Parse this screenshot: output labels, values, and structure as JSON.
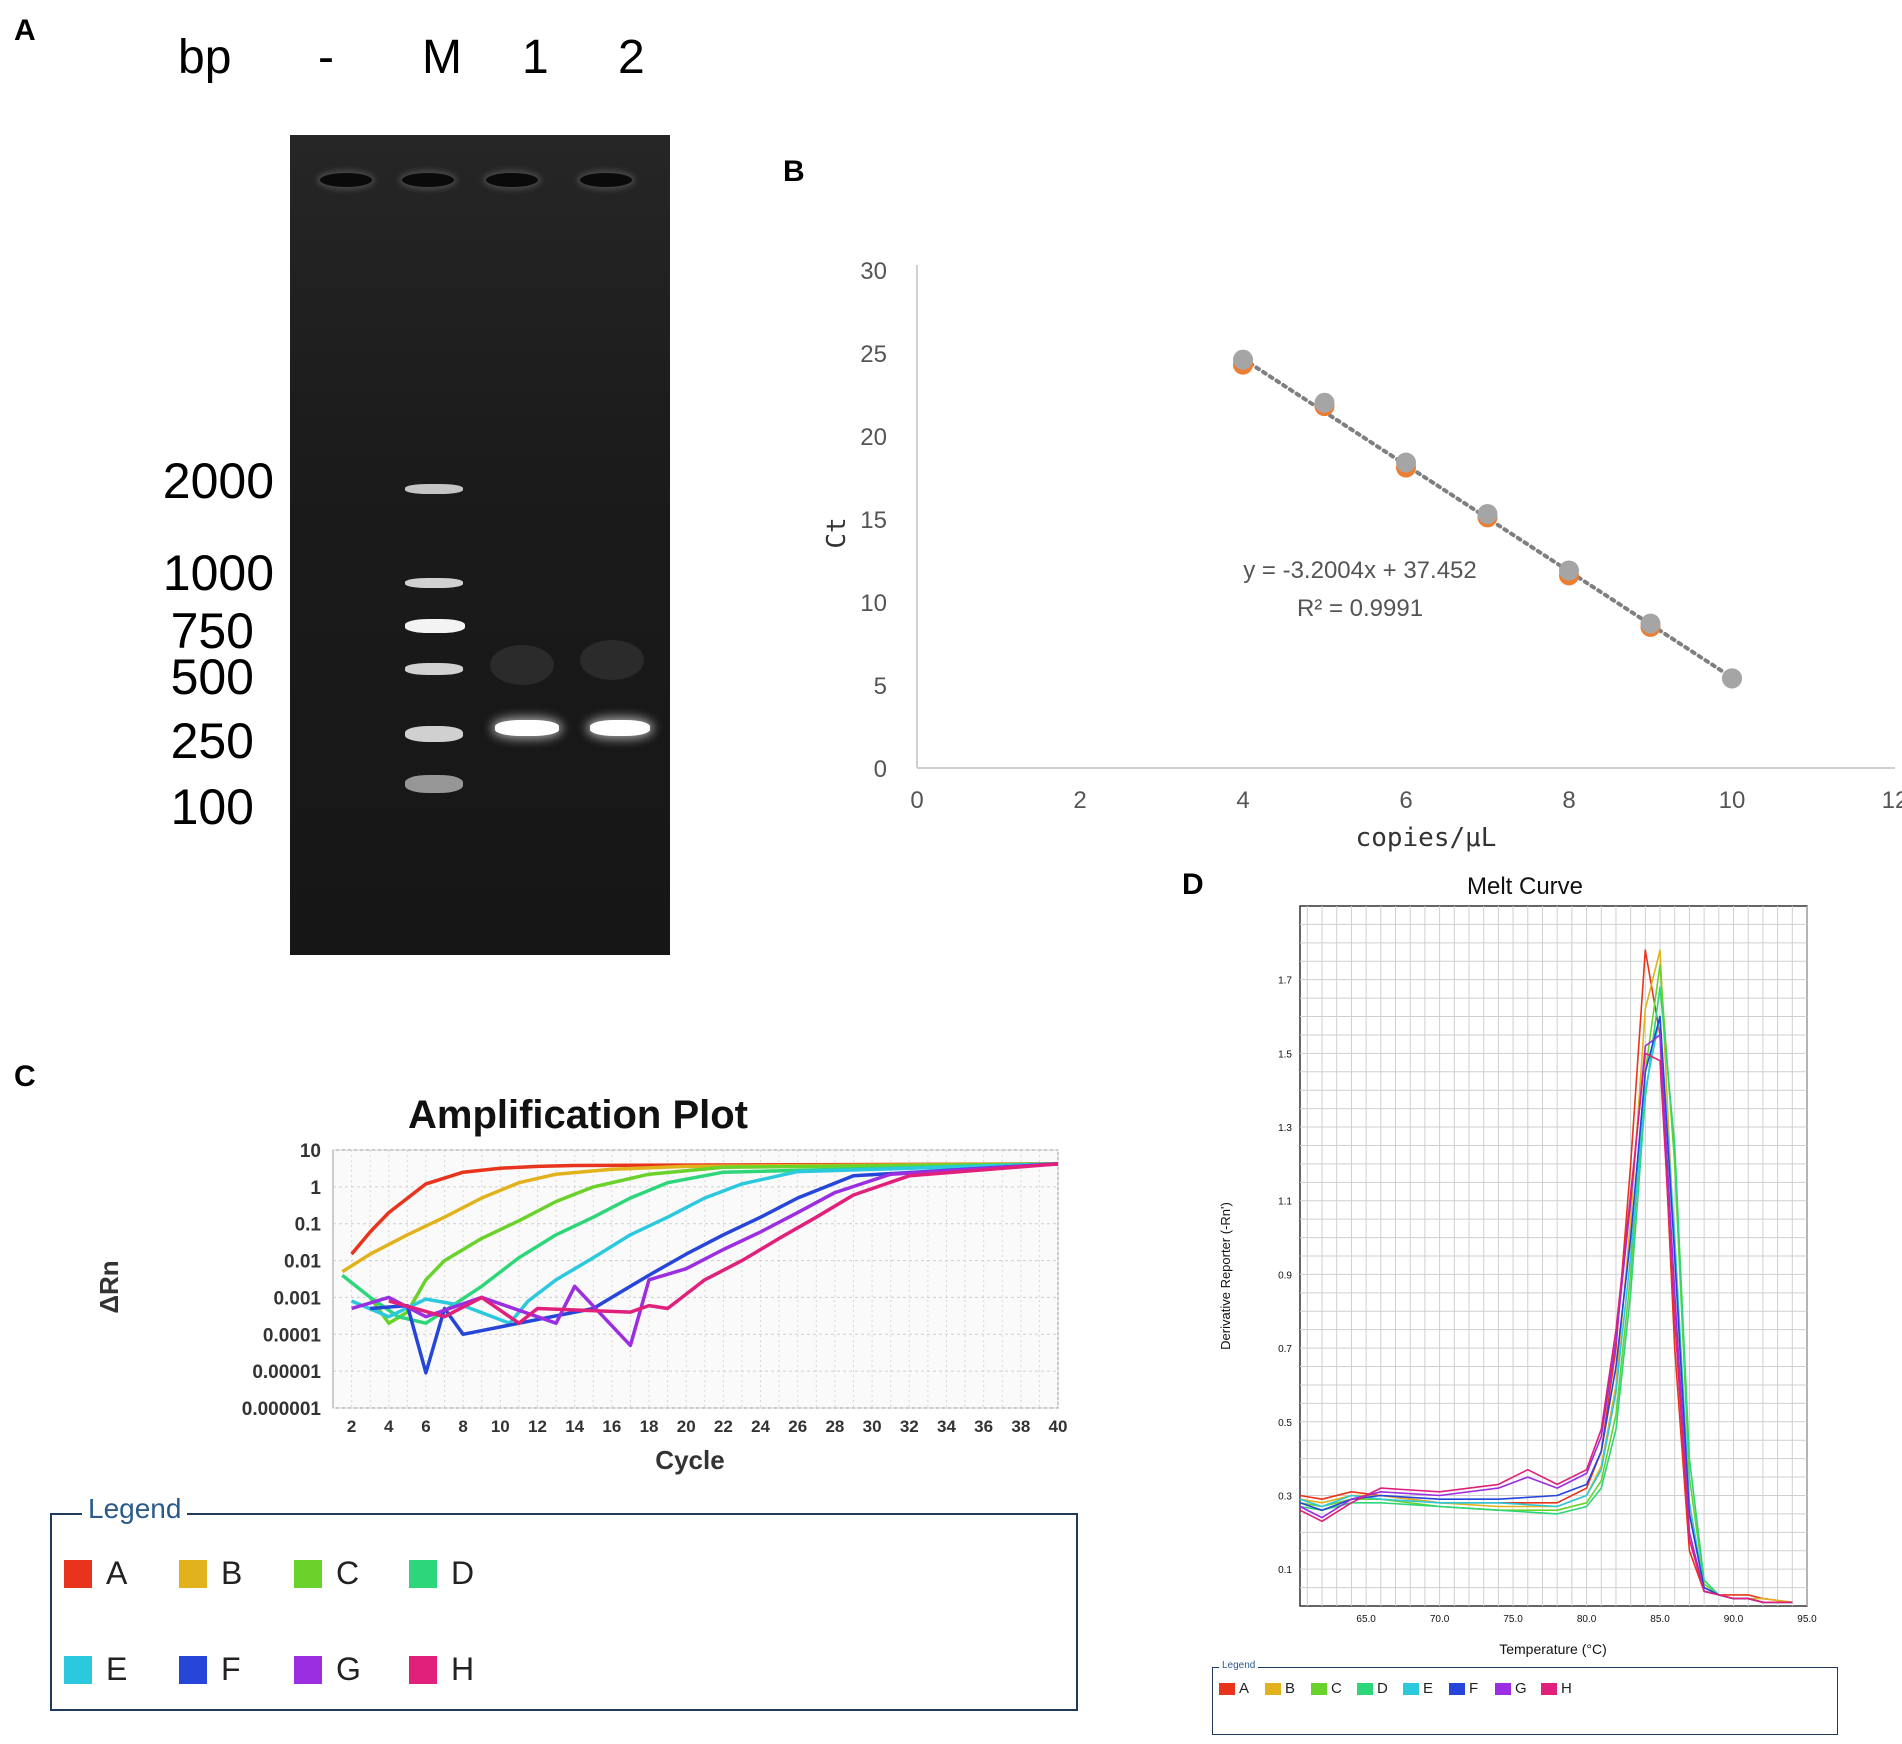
{
  "panels": {
    "a": "A",
    "b": "B",
    "c": "C",
    "d": "D"
  },
  "gel": {
    "columns": [
      "bp",
      "-",
      "M",
      "1",
      "2"
    ],
    "size_labels": [
      "2000",
      "1000",
      "750",
      "500",
      "250",
      "100"
    ]
  },
  "chart_data": [
    {
      "type": "scatter",
      "panel": "B",
      "title": "",
      "xlabel": "copies/μL",
      "ylabel": "Ct",
      "xlim": [
        0,
        12
      ],
      "ylim": [
        0,
        30
      ],
      "xticks": [
        0,
        2,
        4,
        6,
        8,
        10,
        12
      ],
      "yticks": [
        0,
        5,
        10,
        15,
        20,
        25,
        30
      ],
      "grid": false,
      "series": [
        {
          "x": [
            4,
            5,
            6,
            7,
            8,
            9,
            10
          ],
          "y": [
            24.3,
            21.8,
            18.1,
            15.1,
            11.6,
            8.5,
            5.4
          ],
          "color": "#ed7d31"
        },
        {
          "x": [
            4,
            5,
            6,
            7,
            8,
            9,
            10
          ],
          "y": [
            24.6,
            22.0,
            18.4,
            15.3,
            11.9,
            8.7,
            5.4
          ],
          "color": "#a5a5a5"
        }
      ],
      "trendline": {
        "slope": -3.2004,
        "intercept": 37.452,
        "style": "dotted",
        "color": "#7f7f7f"
      },
      "annotations": [
        "y = -3.2004x + 37.452",
        "R² = 0.9991"
      ]
    },
    {
      "type": "line",
      "panel": "C",
      "title": "Amplification Plot",
      "xlabel": "Cycle",
      "ylabel": "ΔRn",
      "yscale": "log",
      "xlim": [
        1,
        40
      ],
      "ylim": [
        1e-06,
        10
      ],
      "xticks": [
        2,
        4,
        6,
        8,
        10,
        12,
        14,
        16,
        18,
        20,
        22,
        24,
        26,
        28,
        30,
        32,
        34,
        36,
        38,
        40
      ],
      "yticks": [
        "10",
        "1",
        "0.1",
        "0.01",
        "0.001",
        "0.0001",
        "0.00001",
        "0.000001"
      ],
      "grid": true,
      "legend_title": "Legend",
      "series": [
        {
          "name": "A",
          "color": "#e8341c",
          "x": [
            2,
            3,
            4,
            6,
            8,
            10,
            12,
            14,
            40
          ],
          "y": [
            0.015,
            0.06,
            0.2,
            1.2,
            2.5,
            3.2,
            3.6,
            3.8,
            4.2
          ]
        },
        {
          "name": "B",
          "color": "#e2b21c",
          "x": [
            1.5,
            3,
            5,
            7,
            9,
            11,
            13,
            16,
            20,
            40
          ],
          "y": [
            0.005,
            0.015,
            0.05,
            0.15,
            0.5,
            1.3,
            2.2,
            3.0,
            3.6,
            4.2
          ]
        },
        {
          "name": "C",
          "color": "#6ad22a",
          "x": [
            3,
            4,
            5,
            6,
            7,
            9,
            11,
            13,
            15,
            18,
            22,
            40
          ],
          "y": [
            0.001,
            0.0002,
            0.0004,
            0.003,
            0.01,
            0.04,
            0.12,
            0.4,
            1.0,
            2.2,
            3.4,
            4.2
          ]
        },
        {
          "name": "D",
          "color": "#2ed67a",
          "x": [
            1.5,
            3,
            4.5,
            6,
            9,
            11,
            13,
            15,
            17,
            19,
            22,
            40
          ],
          "y": [
            0.004,
            0.001,
            0.0003,
            0.0002,
            0.002,
            0.012,
            0.05,
            0.15,
            0.5,
            1.3,
            2.5,
            4.2
          ]
        },
        {
          "name": "E",
          "color": "#2cc8de",
          "x": [
            2,
            4,
            6,
            8,
            10.5,
            11.5,
            13,
            15,
            17,
            19,
            21,
            23,
            26,
            40
          ],
          "y": [
            0.0008,
            0.0003,
            0.0009,
            0.0006,
            0.0002,
            0.0008,
            0.003,
            0.012,
            0.05,
            0.15,
            0.5,
            1.2,
            2.6,
            4.2
          ]
        },
        {
          "name": "F",
          "color": "#2546d8",
          "x": [
            3,
            5,
            6,
            7,
            8,
            15,
            16,
            18,
            20,
            22,
            24,
            26,
            29,
            40
          ],
          "y": [
            0.0005,
            0.0006,
            9e-06,
            0.0005,
            0.0001,
            0.0005,
            0.001,
            0.004,
            0.015,
            0.05,
            0.15,
            0.5,
            2.0,
            4.2
          ]
        },
        {
          "name": "G",
          "color": "#9b2ee0",
          "x": [
            2,
            4,
            6,
            9,
            13,
            14,
            17,
            18,
            20,
            22,
            24,
            26,
            28,
            31,
            40
          ],
          "y": [
            0.0005,
            0.001,
            0.0003,
            0.001,
            0.0002,
            0.002,
            5e-05,
            0.003,
            0.006,
            0.02,
            0.06,
            0.2,
            0.7,
            2.2,
            4.2
          ]
        },
        {
          "name": "H",
          "color": "#e0207a",
          "x": [
            4,
            7,
            9,
            11,
            12,
            17,
            18,
            19,
            21,
            23,
            25,
            27,
            29,
            32,
            40
          ],
          "y": [
            0.0008,
            0.0003,
            0.001,
            0.0002,
            0.0005,
            0.0004,
            0.0006,
            0.0005,
            0.003,
            0.01,
            0.04,
            0.15,
            0.6,
            2.0,
            4.2
          ]
        }
      ]
    },
    {
      "type": "line",
      "panel": "D",
      "title": "Melt Curve",
      "xlabel": "Temperature (°C)",
      "ylabel": "Derivative Reporter (-Rn')",
      "xlim": [
        60.5,
        95
      ],
      "ylim": [
        0,
        1.9
      ],
      "xticks": [
        "65.0",
        "70.0",
        "75.0",
        "80.0",
        "85.0",
        "90.0",
        "95.0"
      ],
      "yticks": [
        "0.1",
        "0.3",
        "0.5",
        "0.7",
        "0.9",
        "1.1",
        "1.3",
        "1.5",
        "1.7"
      ],
      "grid": true,
      "legend_title": "Legend",
      "series": [
        {
          "name": "A",
          "color": "#e8341c",
          "x": [
            60.5,
            62,
            64,
            66,
            70,
            74,
            78,
            80,
            81,
            82,
            83,
            84,
            85,
            86,
            87,
            88,
            89,
            90,
            91,
            92,
            94
          ],
          "y": [
            0.3,
            0.29,
            0.31,
            0.3,
            0.28,
            0.28,
            0.28,
            0.32,
            0.42,
            0.7,
            1.2,
            1.78,
            1.55,
            0.7,
            0.15,
            0.04,
            0.03,
            0.03,
            0.03,
            0.02,
            0.01
          ]
        },
        {
          "name": "B",
          "color": "#e2b21c",
          "x": [
            60.5,
            62,
            64,
            66,
            70,
            74,
            78,
            80,
            81,
            82,
            83,
            84,
            85,
            86,
            87,
            88,
            89,
            90,
            91,
            92,
            94
          ],
          "y": [
            0.29,
            0.28,
            0.3,
            0.3,
            0.28,
            0.27,
            0.27,
            0.3,
            0.38,
            0.6,
            1.05,
            1.62,
            1.78,
            0.95,
            0.25,
            0.05,
            0.03,
            0.02,
            0.02,
            0.02,
            0.01
          ]
        },
        {
          "name": "C",
          "color": "#6ad22a",
          "x": [
            60.5,
            62,
            64,
            66,
            70,
            74,
            78,
            80,
            81,
            82,
            83,
            84,
            85,
            86,
            87,
            88,
            89,
            90,
            91,
            92,
            94
          ],
          "y": [
            0.28,
            0.27,
            0.29,
            0.29,
            0.27,
            0.26,
            0.26,
            0.28,
            0.34,
            0.52,
            0.9,
            1.45,
            1.74,
            1.2,
            0.35,
            0.06,
            0.03,
            0.02,
            0.02,
            0.01,
            0.01
          ]
        },
        {
          "name": "D",
          "color": "#2ed67a",
          "x": [
            60.5,
            62,
            64,
            66,
            70,
            74,
            78,
            80,
            81,
            82,
            83,
            84,
            85,
            86,
            87,
            88,
            89,
            90,
            91,
            92,
            94
          ],
          "y": [
            0.27,
            0.26,
            0.28,
            0.28,
            0.27,
            0.26,
            0.25,
            0.27,
            0.32,
            0.48,
            0.85,
            1.38,
            1.68,
            1.25,
            0.4,
            0.07,
            0.03,
            0.02,
            0.02,
            0.01,
            0.01
          ]
        },
        {
          "name": "E",
          "color": "#2cc8de",
          "x": [
            60.5,
            62,
            64,
            66,
            70,
            74,
            78,
            80,
            81,
            82,
            83,
            84,
            85,
            86,
            87,
            88,
            89,
            90,
            91,
            92,
            94
          ],
          "y": [
            0.29,
            0.27,
            0.3,
            0.29,
            0.28,
            0.28,
            0.27,
            0.3,
            0.37,
            0.58,
            0.95,
            1.4,
            1.6,
            1.0,
            0.28,
            0.05,
            0.03,
            0.02,
            0.02,
            0.01,
            0.01
          ]
        },
        {
          "name": "F",
          "color": "#2546d8",
          "x": [
            60.5,
            62,
            64,
            66,
            70,
            74,
            78,
            80,
            81,
            82,
            83,
            84,
            85,
            86,
            87,
            88,
            89,
            90,
            91,
            92,
            94
          ],
          "y": [
            0.28,
            0.26,
            0.29,
            0.3,
            0.29,
            0.29,
            0.3,
            0.33,
            0.42,
            0.65,
            1.0,
            1.45,
            1.6,
            0.95,
            0.25,
            0.05,
            0.03,
            0.02,
            0.02,
            0.01,
            0.01
          ]
        },
        {
          "name": "G",
          "color": "#9b2ee0",
          "x": [
            60.5,
            62,
            64,
            66,
            70,
            74,
            76,
            78,
            80,
            81,
            82,
            83,
            84,
            85,
            86,
            87,
            88,
            89,
            90,
            91,
            92,
            94
          ],
          "y": [
            0.27,
            0.24,
            0.29,
            0.31,
            0.3,
            0.32,
            0.35,
            0.32,
            0.36,
            0.46,
            0.72,
            1.1,
            1.52,
            1.55,
            0.85,
            0.2,
            0.04,
            0.03,
            0.02,
            0.02,
            0.01,
            0.01
          ]
        },
        {
          "name": "H",
          "color": "#e0207a",
          "x": [
            60.5,
            62,
            64,
            66,
            70,
            74,
            76,
            78,
            80,
            81,
            82,
            83,
            84,
            85,
            86,
            87,
            88,
            89,
            90,
            91,
            92,
            94
          ],
          "y": [
            0.26,
            0.23,
            0.28,
            0.32,
            0.31,
            0.33,
            0.37,
            0.33,
            0.37,
            0.48,
            0.75,
            1.12,
            1.5,
            1.48,
            0.78,
            0.18,
            0.04,
            0.03,
            0.02,
            0.02,
            0.01,
            0.01
          ]
        }
      ]
    }
  ]
}
